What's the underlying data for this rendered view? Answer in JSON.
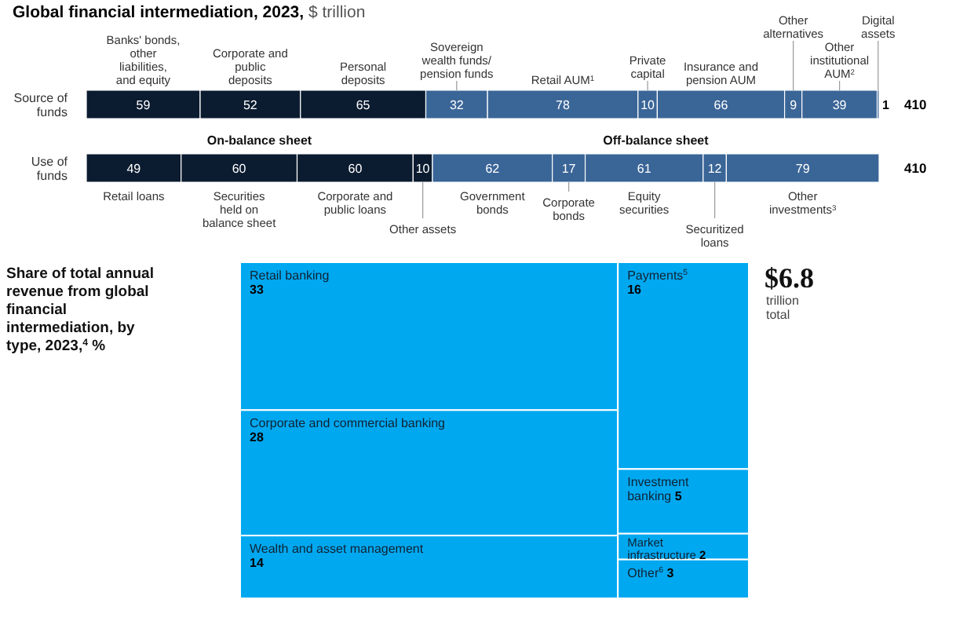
{
  "chart_data": [
    {
      "type": "bar",
      "orientation": "horizontal",
      "stacked": true,
      "tick_labels": "y",
      "title": "Global financial intermediation, 2023, $ trillion",
      "categories": [
        "Source of funds"
      ],
      "totals": [
        "410"
      ],
      "series": [
        {
          "name": "Banks' bonds, other liabilities, and equity",
          "color": "#0b1b30",
          "values": [
            59
          ],
          "value_labels": [
            "59"
          ]
        },
        {
          "name": "Corporate and public deposits",
          "color": "#0b1b30",
          "values": [
            52
          ],
          "value_labels": [
            "52"
          ]
        },
        {
          "name": "Personal deposits",
          "color": "#0b1b30",
          "values": [
            65
          ],
          "value_labels": [
            "65"
          ]
        },
        {
          "name": "Sovereign wealth funds/ pension funds",
          "color": "#3a6597",
          "values": [
            32
          ],
          "value_labels": [
            "32"
          ]
        },
        {
          "name": "Retail AUM$^{1}$",
          "color": "#3a6597",
          "values": [
            78
          ],
          "value_labels": [
            "78"
          ]
        },
        {
          "name": "Private capital",
          "color": "#3a6597",
          "values": [
            10
          ],
          "value_labels": [
            "10"
          ]
        },
        {
          "name": "Insurance and pension AUM",
          "color": "#3a6597",
          "values": [
            66
          ],
          "value_labels": [
            "66"
          ]
        },
        {
          "name": "Other alternatives",
          "color": "#3a6597",
          "values": [
            9
          ],
          "value_labels": [
            "9"
          ]
        },
        {
          "name": "Other institutional AUM$^{2}$",
          "color": "#3a6597",
          "values": [
            39
          ],
          "value_labels": [
            "39"
          ]
        },
        {
          "name": "Digital assets",
          "color": "#3a6597",
          "values": [
            1
          ],
          "value_labels": [
            "1"
          ]
        }
      ]
    },
    {
      "type": "bar",
      "orientation": "horizontal",
      "stacked": true,
      "data_labels": true,
      "tick_labels": "y",
      "categories": [
        "Use of funds"
      ],
      "totals": [
        "410"
      ],
      "annotations": [
        "On-balance sheet",
        "Off-balance sheet"
      ],
      "series": [
        {
          "name": "Retail loans",
          "color": "#0b1b30",
          "values": [
            49
          ]
        },
        {
          "name": "Securities held on balance sheet",
          "color": "#0b1b30",
          "values": [
            60
          ]
        },
        {
          "name": "Corporate and public loans",
          "color": "#0b1b30",
          "values": [
            60
          ]
        },
        {
          "name": "Other assets",
          "color": "#0b1b30",
          "values": [
            10
          ]
        },
        {
          "name": "Government bonds",
          "color": "#3a6597",
          "values": [
            62
          ]
        },
        {
          "name": "Corporate bonds",
          "color": "#3a6597",
          "values": [
            17
          ]
        },
        {
          "name": "Equity securities",
          "color": "#3a6597",
          "values": [
            61
          ]
        },
        {
          "name": "Securitized loans",
          "color": "#3a6597",
          "values": [
            12
          ]
        },
        {
          "name": "Other investments$^{3}$",
          "color": "#3a6597",
          "values": [
            79
          ]
        }
      ]
    },
    {
      "type": "other",
      "data_labels": true,
      "title": "Share of total annual revenue from global financial intermediation, by type, 2023,$^{4}$ %",
      "categories": [
        "Retail banking",
        "Corporate and commercial banking",
        "Wealth and asset management",
        "Payments$^{5}$",
        "Investment banking",
        "Market infrastructure",
        "Other$^{6}$"
      ],
      "values": [
        33,
        28,
        14,
        16,
        5,
        2,
        3
      ],
      "colors": [
        "#00a8f0",
        "#00a8f0",
        "#00a8f0",
        "#00a8f0",
        "#00a8f0",
        "#00a8f0",
        "#00a8f0"
      ],
      "annotations": [
        "$6.8",
        "trillion total"
      ]
    }
  ]
}
